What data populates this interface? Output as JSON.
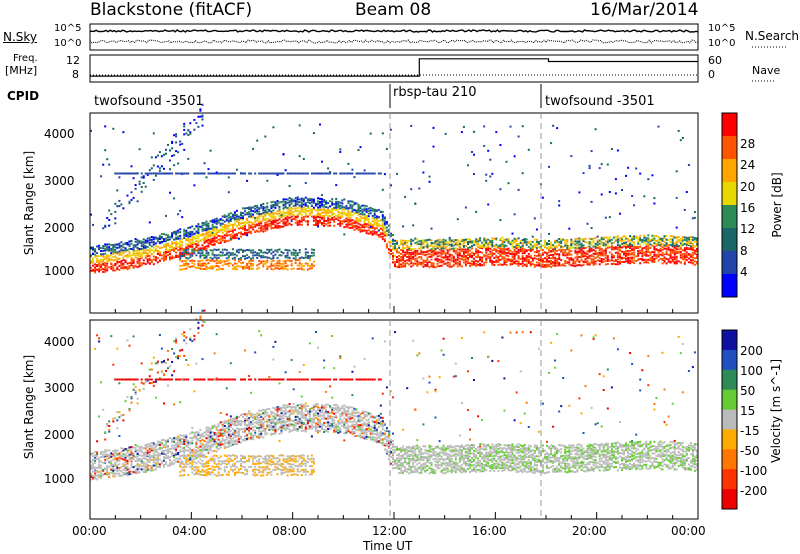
{
  "header": {
    "site": "Blackstone (fitACF)",
    "beam": "Beam 08",
    "date": "16/Mar/2014"
  },
  "top_panels": {
    "nsky_label": "N.Sky",
    "nsearch_label": "N.Search",
    "log_top": "10^5",
    "log_bottom": "10^0",
    "freq_label_1": "Freq.",
    "freq_label_2": "[MHz]",
    "freq_ticks": [
      "12",
      "8"
    ],
    "nave_label": "Nave",
    "nave_ticks": [
      "60",
      "0"
    ],
    "cpid_label": "CPID",
    "programs": [
      {
        "name": "twofsound -3501",
        "start_hour": 0
      },
      {
        "name": "rbsp-tau 210",
        "start_hour": 12
      },
      {
        "name": "twofsound -3501",
        "start_hour": 18
      }
    ],
    "freq_step": {
      "hours": [
        0,
        13,
        13,
        18.1,
        18.1,
        24
      ],
      "mhz": [
        8.6,
        8.6,
        11.8,
        11.8,
        11.3,
        11.3
      ]
    }
  },
  "axes": {
    "xlabel": "Time UT",
    "x_ticks": [
      "00:00",
      "04:00",
      "08:00",
      "12:00",
      "16:00",
      "20:00",
      "00:00"
    ],
    "ylabel_top": "Slant Range [km]",
    "ylabel_bottom": "Slant Range [km]",
    "y_ticks": [
      "4000",
      "3000",
      "2000",
      "1000"
    ]
  },
  "power_colorbar": {
    "label": "Power [dB]",
    "ticks": [
      "28",
      "24",
      "20",
      "16",
      "12",
      "8",
      "4"
    ],
    "colors": [
      "#ff0000",
      "#ff5500",
      "#ffa500",
      "#e6d800",
      "#2e8b57",
      "#1a6666",
      "#2244aa",
      "#0000ff"
    ]
  },
  "velocity_colorbar": {
    "label": "Velocity [m s^-1]",
    "ticks": [
      "200",
      "100",
      "50",
      "15",
      "-15",
      "-50",
      "-100",
      "-200"
    ],
    "colors": [
      "#1010a0",
      "#2050c0",
      "#2e8b57",
      "#66cc33",
      "#bbbbbb",
      "#ffaa00",
      "#ff7700",
      "#ff3300",
      "#ee0000"
    ]
  },
  "chart_data": {
    "type": "heatmap",
    "x_range_hours": [
      0,
      24
    ],
    "y_range_km": [
      180,
      4500
    ],
    "grid": false,
    "features": [
      {
        "name": "main band",
        "hours": [
          0,
          2,
          4,
          6,
          8,
          10,
          11.5,
          12,
          14,
          16,
          18,
          20,
          22,
          24
        ],
        "range_km": [
          1000,
          1150,
          1450,
          1850,
          2100,
          2050,
          1800,
          1150,
          1150,
          1200,
          1150,
          1200,
          1250,
          1200
        ]
      },
      {
        "name": "blob",
        "hours": [
          3.5,
          8.8
        ],
        "range_km": [
          800,
          1350
        ]
      },
      {
        "name": "upper arc",
        "hours": [
          0.5,
          4.5
        ],
        "range_km": [
          1800,
          4400
        ]
      },
      {
        "name": "3000 km line",
        "hours": [
          0.8,
          11.5
        ],
        "range_km": [
          3000,
          3000
        ]
      }
    ]
  }
}
